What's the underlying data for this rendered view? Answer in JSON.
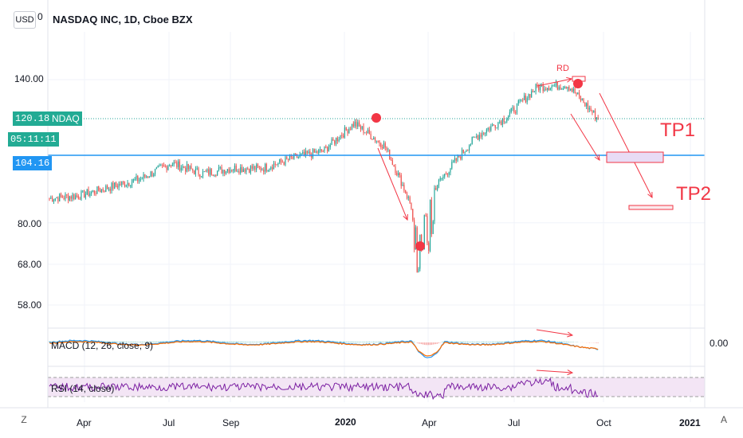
{
  "header": {
    "currency": "USD",
    "currency_suffix": "0",
    "title": "NASDAQ INC, 1D, Cboe BZX"
  },
  "price_axis": {
    "ticks": [
      "140.00",
      "80.00",
      "68.00",
      "58.00"
    ],
    "last_price": "120.18",
    "symbol": "NDAQ",
    "countdown": "05:11:11",
    "hline_price": "104.16"
  },
  "time_axis": {
    "labels": [
      "Apr",
      "Jul",
      "Sep",
      "2020",
      "Apr",
      "Jul",
      "Oct",
      "2021"
    ],
    "left_button": "Z",
    "right_button": "A"
  },
  "annotations": {
    "rd": "RD",
    "tp1": "TP1",
    "tp2": "TP2"
  },
  "indicators": {
    "macd_label": "MACD (12, 26, close, 9)",
    "macd_value": "0.00",
    "rsi_label": "RSI (14, close)"
  },
  "colors": {
    "up": "#26a69a",
    "down": "#ef5350",
    "hline": "#2196f3",
    "annotation": "#f23645",
    "macd": "#2196f3",
    "signal": "#ff6d00",
    "rsi": "#7b1fa2",
    "rsi_band": "#f3e5f5",
    "tag_green": "#22ab94"
  },
  "chart_data": {
    "type": "candlestick",
    "title": "NASDAQ INC, 1D, Cboe BZX",
    "scale": "log",
    "ylim": [
      54,
      160
    ],
    "price_ticks": [
      140,
      80,
      68,
      58
    ],
    "horizontal_line": 104.16,
    "last_price": 120.18,
    "x_labels": [
      "Apr",
      "Jul",
      "Sep",
      "2020",
      "Apr",
      "Jul",
      "Oct",
      "2021"
    ],
    "series": [
      {
        "name": "NDAQ",
        "dates": [
          "2019-03",
          "2019-04",
          "2019-05",
          "2019-06",
          "2019-07",
          "2019-08",
          "2019-09",
          "2019-10",
          "2019-11",
          "2019-12",
          "2020-01",
          "2020-02",
          "2020-03",
          "2020-04",
          "2020-05",
          "2020-06",
          "2020-07",
          "2020-08",
          "2020-09"
        ],
        "close": [
          88,
          89,
          92,
          95,
          101,
          97,
          99,
          99,
          103,
          106,
          118,
          108,
          82,
          97,
          112,
          121,
          136,
          137,
          120
        ]
      }
    ],
    "markers": [
      {
        "date": "2020-01-22",
        "price": 119,
        "label": ""
      },
      {
        "date": "2020-03-23",
        "price": 72,
        "label": ""
      },
      {
        "date": "2020-09-03",
        "price": 139,
        "label": "RD"
      }
    ],
    "targets": [
      {
        "label": "TP1",
        "price": 104.16
      },
      {
        "label": "TP2",
        "price": 87
      }
    ],
    "macd_params": "12, 26, close, 9",
    "rsi_params": "14, close"
  }
}
